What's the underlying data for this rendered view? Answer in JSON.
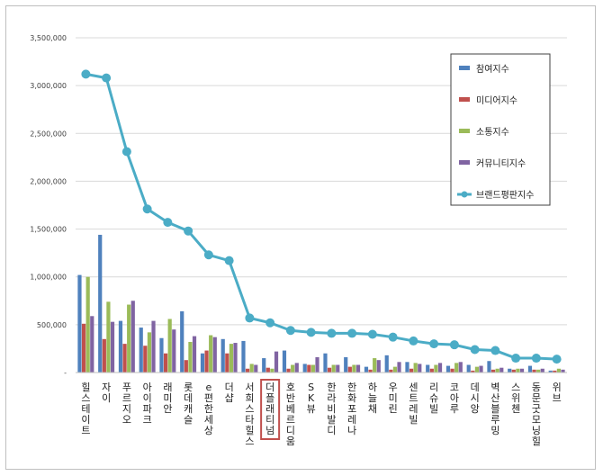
{
  "chart_data": {
    "type": "bar",
    "title": "",
    "xlabel": "",
    "ylabel": "",
    "ylim": [
      0,
      3500000
    ],
    "yticks": [
      "-",
      "500,000",
      "1,000,000",
      "1,500,000",
      "2,000,000",
      "2,500,000",
      "3,000,000",
      "3,500,000"
    ],
    "grid": true,
    "legend_position": "top-right",
    "categories": [
      "힐스테이트",
      "자이",
      "푸르지오",
      "아이파크",
      "래미안",
      "롯데캐슬",
      "e편한세상",
      "더샵",
      "서희스타힐스",
      "더플래티넘",
      "호반베르디움",
      "SK뷰",
      "한라비발디",
      "한화포레나",
      "하늘채",
      "우미린",
      "센트레빌",
      "리슈빌",
      "코아루",
      "데시앙",
      "벽산블루밍",
      "스위첸",
      "동문굿모닝힐",
      "위브"
    ],
    "highlighted_category": "더플래티넘",
    "highlight_color": "#c0504d",
    "series": [
      {
        "name": "참여지수",
        "type": "bar",
        "color": "#4f81bd",
        "values": [
          1020000,
          1440000,
          540000,
          470000,
          360000,
          640000,
          200000,
          350000,
          330000,
          150000,
          230000,
          90000,
          200000,
          160000,
          60000,
          180000,
          110000,
          80000,
          70000,
          80000,
          120000,
          40000,
          70000,
          20000
        ]
      },
      {
        "name": "미디어지수",
        "type": "bar",
        "color": "#c0504d",
        "values": [
          510000,
          350000,
          300000,
          280000,
          200000,
          130000,
          230000,
          200000,
          40000,
          50000,
          40000,
          80000,
          50000,
          60000,
          30000,
          30000,
          40000,
          40000,
          40000,
          20000,
          30000,
          30000,
          30000,
          20000
        ]
      },
      {
        "name": "소통지수",
        "type": "bar",
        "color": "#9bbb59",
        "values": [
          1000000,
          740000,
          710000,
          420000,
          560000,
          320000,
          390000,
          300000,
          90000,
          40000,
          80000,
          80000,
          80000,
          80000,
          150000,
          60000,
          100000,
          80000,
          100000,
          60000,
          40000,
          40000,
          30000,
          40000
        ]
      },
      {
        "name": "커뮤니티지수",
        "type": "bar",
        "color": "#8064a2",
        "values": [
          590000,
          530000,
          750000,
          540000,
          450000,
          380000,
          370000,
          310000,
          80000,
          220000,
          100000,
          160000,
          80000,
          80000,
          130000,
          110000,
          90000,
          100000,
          110000,
          70000,
          50000,
          40000,
          40000,
          30000
        ]
      },
      {
        "name": "브랜드평판지수",
        "type": "line",
        "color": "#4bacc6",
        "values": [
          3120000,
          3080000,
          2310000,
          1710000,
          1570000,
          1480000,
          1230000,
          1170000,
          570000,
          520000,
          440000,
          420000,
          410000,
          410000,
          400000,
          370000,
          330000,
          300000,
          290000,
          240000,
          230000,
          150000,
          150000,
          140000
        ]
      }
    ]
  }
}
